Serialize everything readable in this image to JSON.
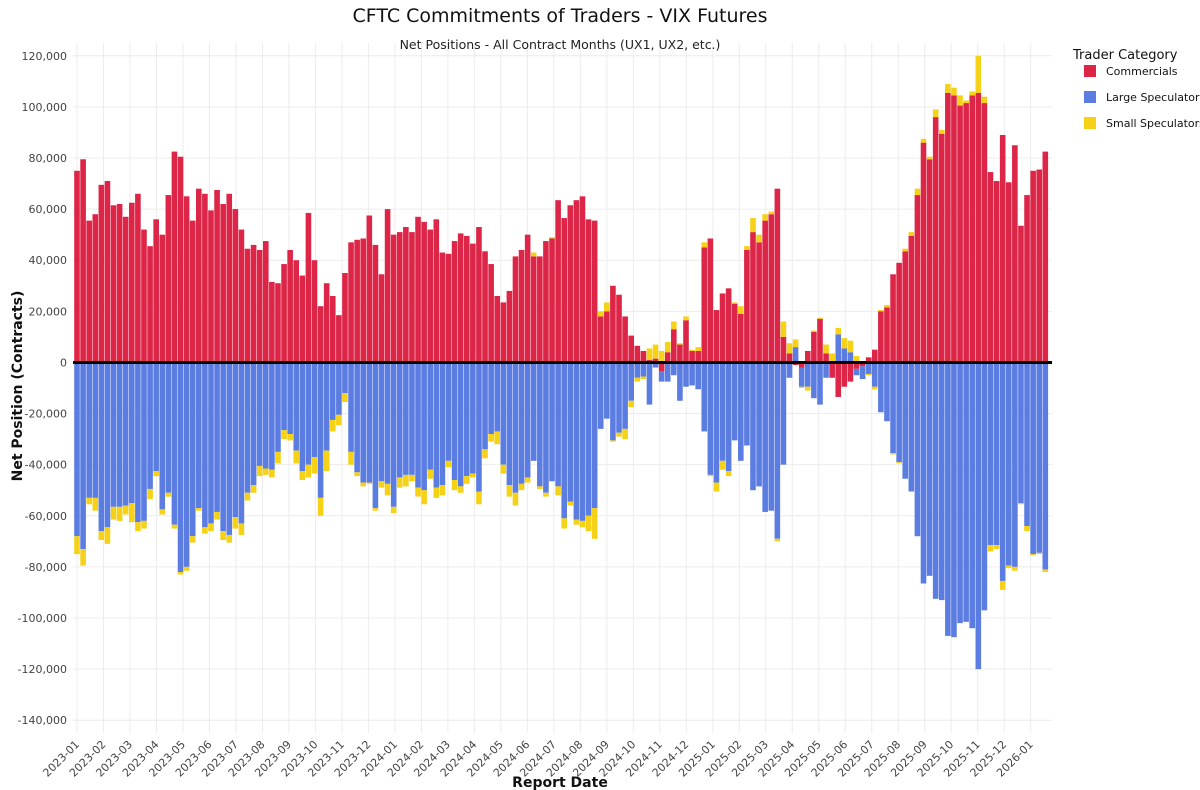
{
  "chart_data": {
    "type": "bar",
    "stacked": "relative",
    "title": "CFTC Commitments of Traders - VIX Futures",
    "subtitle": "Net Positions - All Contract Months (UX1, UX2, etc.)",
    "xlabel": "Report Date",
    "ylabel": "Net Position (Contracts)",
    "ylim": [
      -145000,
      125000
    ],
    "yticks": [
      120000,
      100000,
      80000,
      60000,
      40000,
      20000,
      0,
      -20000,
      -40000,
      -60000,
      -80000,
      -100000,
      -120000,
      -140000
    ],
    "ytick_labels": [
      "120,000",
      "100,000",
      "80,000",
      "60,000",
      "40,000",
      "20,000",
      "0",
      "-20,000",
      "-40,000",
      "-60,000",
      "-80,000",
      "-100,000",
      "-120,000",
      "-140,000"
    ],
    "xticks": [
      "2023-01",
      "2023-02",
      "2023-03",
      "2023-04",
      "2023-05",
      "2023-06",
      "2023-07",
      "2023-08",
      "2023-09",
      "2023-10",
      "2023-11",
      "2023-12",
      "2024-01",
      "2024-02",
      "2024-03",
      "2024-04",
      "2024-05",
      "2024-06",
      "2024-07",
      "2024-08",
      "2024-09",
      "2024-10",
      "2024-11",
      "2024-12",
      "2025-01",
      "2025-02",
      "2025-03",
      "2025-04",
      "2025-05",
      "2025-06",
      "2025-07",
      "2025-08",
      "2025-09",
      "2025-10",
      "2025-11",
      "2025-12",
      "2026-01"
    ],
    "weeks_per_tick": 4.35,
    "zero_line": true,
    "grid": true,
    "legend_title": "Trader Category",
    "legend_position": "top-right",
    "series": [
      {
        "name": "Commercials",
        "color": "#dc2547",
        "values": [
          75000,
          79500,
          55500,
          58000,
          69500,
          71000,
          61500,
          62000,
          57000,
          62500,
          66000,
          52000,
          45500,
          56000,
          50000,
          65500,
          82500,
          80500,
          65000,
          55500,
          68000,
          66000,
          59500,
          67500,
          62000,
          66000,
          60000,
          52000,
          44500,
          46000,
          44000,
          47500,
          31500,
          31000,
          38500,
          44000,
          40000,
          34000,
          58500,
          40000,
          22000,
          31000,
          26000,
          18500,
          35000,
          47000,
          48000,
          48500,
          57500,
          46000,
          34500,
          60000,
          50000,
          51000,
          53000,
          51000,
          57000,
          55000,
          52000,
          56000,
          43000,
          42500,
          47500,
          50500,
          49500,
          46500,
          53000,
          43500,
          38500,
          26000,
          23500,
          28000,
          41500,
          44000,
          50000,
          41500,
          41500,
          47500,
          48500,
          63500,
          56500,
          61500,
          63500,
          65000,
          56000,
          55500,
          18000,
          20000,
          30000,
          26500,
          18000,
          10500,
          6500,
          4500,
          1000,
          1500,
          -3500,
          4000,
          13000,
          7000,
          16500,
          4500,
          4500,
          45000,
          48500,
          20500,
          27000,
          29000,
          23000,
          19000,
          44000,
          51000,
          47000,
          55500,
          58000,
          68000,
          10000,
          3500,
          -1000,
          -2000,
          4500,
          12000,
          17000,
          3500,
          -6000,
          -13500,
          -9500,
          -7500,
          -2500,
          -1500,
          2000,
          5000,
          20000,
          21500,
          34500,
          39000,
          43500,
          49500,
          65500,
          86000,
          79500,
          96000,
          89500,
          105500,
          104500,
          100500,
          101500,
          104500,
          105500,
          101500,
          74500,
          71000,
          89000,
          70500,
          85000,
          53500,
          65500,
          75000,
          75500,
          82500
        ]
      },
      {
        "name": "Large Speculators",
        "color": "#5b7de2",
        "values": [
          -68000,
          -73000,
          -53000,
          -53000,
          -66000,
          -64500,
          -56500,
          -56500,
          -56000,
          -55000,
          -62500,
          -62000,
          -49500,
          -42500,
          -57500,
          -51000,
          -63500,
          -82000,
          -80000,
          -68000,
          -57000,
          -64500,
          -63000,
          -58500,
          -66000,
          -67500,
          -60500,
          -63000,
          -51000,
          -48000,
          -40500,
          -41500,
          -42000,
          -35000,
          -26500,
          -28000,
          -34500,
          -42500,
          -40000,
          -37000,
          -53000,
          -34500,
          -22500,
          -20500,
          -12000,
          -35000,
          -43000,
          -47000,
          -47000,
          -57000,
          -46500,
          -47500,
          -56500,
          -45000,
          -44000,
          -44000,
          -49000,
          -50000,
          -42000,
          -49000,
          -48000,
          -38500,
          -46000,
          -48500,
          -44500,
          -43500,
          -50500,
          -34000,
          -28000,
          -27000,
          -40000,
          -48000,
          -51000,
          -47500,
          -45000,
          -38500,
          -48500,
          -51000,
          -46500,
          -48500,
          -61000,
          -54500,
          -61500,
          -62000,
          -60000,
          -57000,
          -26000,
          -22000,
          -30500,
          -27500,
          -26000,
          -15000,
          -6000,
          -5500,
          -16500,
          -2000,
          -4000,
          -7500,
          -5000,
          -15000,
          -9500,
          -9000,
          -10500,
          -27000,
          -44000,
          -47000,
          -38500,
          -42500,
          -30500,
          -38500,
          -32500,
          -50000,
          -48500,
          -58500,
          -58000,
          -69000,
          -40000,
          -6000,
          6000,
          -7500,
          -9500,
          -14000,
          -16500,
          -6000,
          0,
          11000,
          5500,
          4000,
          -2500,
          -5000,
          -4500,
          -9500,
          -19500,
          -23000,
          -35500,
          -39000,
          -45500,
          -50500,
          -68000,
          -86500,
          -83500,
          -92500,
          -93000,
          -107000,
          -107500,
          -102000,
          -101500,
          -104000,
          -120000,
          -97000,
          -71500,
          -71500,
          -85500,
          -79500,
          -80000,
          -55000,
          -64000,
          -75000,
          -74500,
          -81000
        ]
      },
      {
        "name": "Small Speculators",
        "color": "#f5d117",
        "values": [
          -7000,
          -6500,
          -2500,
          -5000,
          -3500,
          -6500,
          -5000,
          -5500,
          -3500,
          -7500,
          -3500,
          -3000,
          -4000,
          -2000,
          -2000,
          -1500,
          -1500,
          -1000,
          -1500,
          -2500,
          -1000,
          -2500,
          -3000,
          -3000,
          -3500,
          -3000,
          -4500,
          -4500,
          -3000,
          -3000,
          -4000,
          -2500,
          -3000,
          -4500,
          -3500,
          -2500,
          -5000,
          -3500,
          -5000,
          -6500,
          -7000,
          -8000,
          -4500,
          -4000,
          -3500,
          -5000,
          -1500,
          -1500,
          -500,
          -1000,
          -2500,
          -4500,
          -2500,
          -4000,
          -4500,
          -2500,
          -3500,
          -5500,
          -3500,
          -4000,
          -4000,
          -2500,
          -4000,
          -2500,
          -3000,
          -1500,
          -5000,
          -3500,
          -3000,
          -5000,
          -3500,
          -4500,
          -5000,
          -2500,
          -2000,
          1500,
          -1000,
          -1500,
          500,
          -3500,
          -4000,
          -1500,
          -2000,
          -2500,
          -6000,
          -12000,
          2000,
          3500,
          -500,
          -1500,
          -4000,
          -2500,
          -1500,
          -1000,
          4500,
          5500,
          4500,
          4000,
          3000,
          500,
          1500,
          500,
          1500,
          2000,
          -500,
          -3500,
          -3500,
          -2000,
          500,
          3000,
          1500,
          5500,
          3000,
          2500,
          1000,
          -1000,
          6000,
          4000,
          3000,
          -500,
          -1500,
          500,
          500,
          3500,
          3500,
          2500,
          4000,
          4500,
          2500,
          500,
          -500,
          -1000,
          500,
          1000,
          -500,
          -500,
          1000,
          1500,
          2500,
          1500,
          1000,
          3000,
          1500,
          3500,
          3000,
          4000,
          1000,
          1500,
          14500,
          2500,
          -2500,
          -1500,
          -3500,
          -1000,
          -1500,
          -500,
          -2000,
          -500,
          -500,
          -1000
        ]
      }
    ]
  }
}
